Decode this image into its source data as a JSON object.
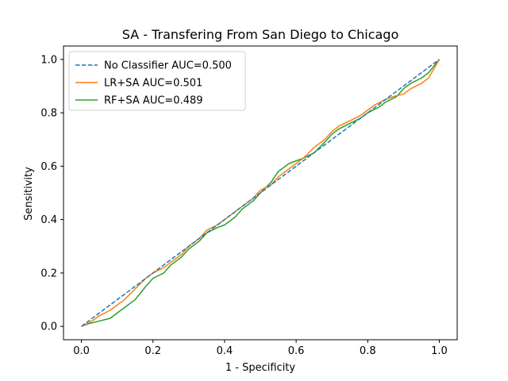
{
  "chart_data": {
    "type": "line",
    "title": "SA - Transfering From San Diego to Chicago",
    "xlabel": "1 - Specificity",
    "ylabel": "Sensitivity",
    "xlim": [
      -0.05,
      1.05
    ],
    "ylim": [
      -0.05,
      1.05
    ],
    "x_ticks": [
      0.0,
      0.2,
      0.4,
      0.6,
      0.8,
      1.0
    ],
    "y_ticks": [
      0.0,
      0.2,
      0.4,
      0.6,
      0.8,
      1.0
    ],
    "x_tick_labels": [
      "0.0",
      "0.2",
      "0.4",
      "0.6",
      "0.8",
      "1.0"
    ],
    "y_tick_labels": [
      "0.0",
      "0.2",
      "0.4",
      "0.6",
      "0.8",
      "1.0"
    ],
    "grid": false,
    "legend_position": "top-left",
    "series": [
      {
        "name": "No Classifier AUC=0.500",
        "color": "#1f77b4",
        "style": "dashed",
        "x": [
          0.0,
          1.0
        ],
        "y": [
          0.0,
          1.0
        ]
      },
      {
        "name": "LR+SA AUC=0.501",
        "color": "#ff7f0e",
        "style": "solid",
        "x": [
          0.0,
          0.03,
          0.05,
          0.08,
          0.1,
          0.12,
          0.15,
          0.18,
          0.2,
          0.23,
          0.25,
          0.28,
          0.3,
          0.33,
          0.35,
          0.38,
          0.4,
          0.43,
          0.45,
          0.48,
          0.5,
          0.53,
          0.55,
          0.58,
          0.6,
          0.62,
          0.65,
          0.68,
          0.7,
          0.72,
          0.75,
          0.78,
          0.8,
          0.82,
          0.85,
          0.87,
          0.9,
          0.92,
          0.95,
          0.97,
          1.0
        ],
        "y": [
          0.0,
          0.02,
          0.04,
          0.06,
          0.08,
          0.1,
          0.14,
          0.18,
          0.2,
          0.22,
          0.24,
          0.27,
          0.3,
          0.33,
          0.36,
          0.38,
          0.4,
          0.43,
          0.45,
          0.48,
          0.51,
          0.53,
          0.56,
          0.59,
          0.61,
          0.63,
          0.67,
          0.7,
          0.73,
          0.75,
          0.77,
          0.79,
          0.81,
          0.83,
          0.85,
          0.86,
          0.87,
          0.89,
          0.91,
          0.93,
          1.0
        ]
      },
      {
        "name": "RF+SA AUC=0.489",
        "color": "#2ca02c",
        "style": "solid",
        "x": [
          0.0,
          0.02,
          0.05,
          0.08,
          0.1,
          0.12,
          0.15,
          0.18,
          0.2,
          0.23,
          0.25,
          0.28,
          0.3,
          0.33,
          0.35,
          0.38,
          0.4,
          0.43,
          0.45,
          0.48,
          0.5,
          0.53,
          0.55,
          0.58,
          0.6,
          0.62,
          0.65,
          0.68,
          0.7,
          0.72,
          0.75,
          0.78,
          0.8,
          0.83,
          0.85,
          0.88,
          0.9,
          0.92,
          0.95,
          0.97,
          1.0
        ],
        "y": [
          0.0,
          0.01,
          0.02,
          0.03,
          0.05,
          0.07,
          0.1,
          0.15,
          0.18,
          0.2,
          0.23,
          0.26,
          0.29,
          0.32,
          0.35,
          0.37,
          0.38,
          0.41,
          0.44,
          0.47,
          0.5,
          0.54,
          0.58,
          0.61,
          0.62,
          0.63,
          0.65,
          0.69,
          0.72,
          0.74,
          0.76,
          0.78,
          0.8,
          0.82,
          0.84,
          0.86,
          0.89,
          0.91,
          0.93,
          0.95,
          1.0
        ]
      }
    ]
  }
}
